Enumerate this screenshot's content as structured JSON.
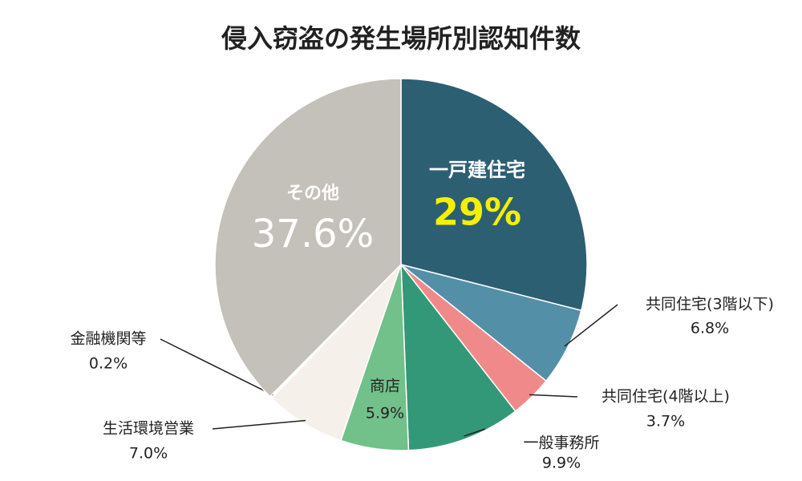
{
  "chart_data": {
    "type": "pie",
    "title": "侵入窃盗の発生場所別認知件数",
    "categories": [
      "一戸建住宅",
      "共同住宅(3階以下)",
      "共同住宅(4階以上)",
      "一般事務所",
      "商店",
      "生活環境営業",
      "金融機関等",
      "その他"
    ],
    "values": [
      29,
      6.8,
      3.7,
      9.9,
      5.9,
      7.0,
      0.2,
      37.6
    ],
    "value_labels": [
      "29%",
      "6.8%",
      "3.7%",
      "9.9%",
      "5.9%",
      "7.0%",
      "0.2%",
      "37.6%"
    ],
    "colors": [
      "#2d5f73",
      "#548fa8",
      "#f08a8a",
      "#339878",
      "#72c08a",
      "#f5f0ea",
      "#ffffff",
      "#c4c1ba"
    ]
  }
}
